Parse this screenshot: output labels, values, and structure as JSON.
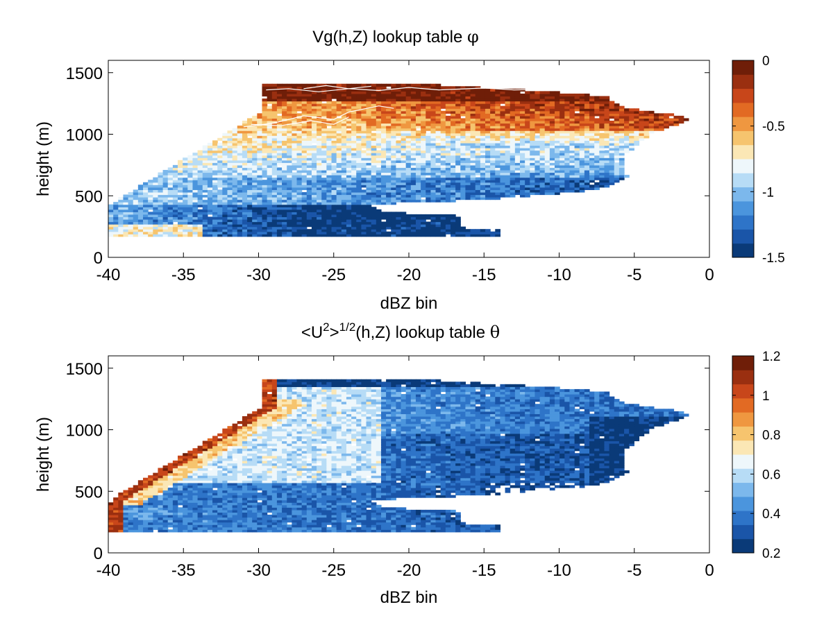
{
  "chart_data": [
    {
      "type": "heatmap",
      "title": "Vg(h,Z) lookup table",
      "title_symbol": "φ",
      "xlabel": "dBZ bin",
      "ylabel": "height (m)",
      "xlim": [
        -40,
        0
      ],
      "ylim": [
        0,
        1600
      ],
      "xticks": [
        -40,
        -35,
        -30,
        -25,
        -20,
        -15,
        -10,
        -5,
        0
      ],
      "yticks": [
        0,
        500,
        1000,
        1500
      ],
      "colorbar": {
        "range": [
          -1.5,
          0
        ],
        "ticks": [
          -1.5,
          -1,
          -0.5,
          0
        ],
        "tick_labels": [
          "-1.5",
          "-1",
          "-0.5",
          "0"
        ],
        "colormap": "blue-white-red"
      },
      "data_domain": {
        "bin_x_dbz": 0.33,
        "bin_y_m": 20,
        "x_range": [
          -40,
          -1.5
        ],
        "y_range": [
          170,
          1400
        ]
      },
      "field": {
        "upper_band_mean": -0.1,
        "mid_band_mean": -0.8,
        "low_band_mean": -1.1,
        "bottom_tongue_mean": -1.45
      },
      "contour_color": "#ffffff"
    },
    {
      "type": "heatmap",
      "title_main": "<U",
      "title_sup1": "2",
      "title_mid": ">",
      "title_sup2": "1/2",
      "title_end": "(h,Z) lookup table",
      "title_symbol": "θ",
      "xlabel": "dBZ bin",
      "ylabel": "height (m)",
      "xlim": [
        -40,
        0
      ],
      "ylim": [
        0,
        1600
      ],
      "xticks": [
        -40,
        -35,
        -30,
        -25,
        -20,
        -15,
        -10,
        -5,
        0
      ],
      "yticks": [
        0,
        500,
        1000,
        1500
      ],
      "colorbar": {
        "range": [
          0.2,
          1.2
        ],
        "ticks": [
          0.2,
          0.4,
          0.6,
          0.8,
          1,
          1.2
        ],
        "tick_labels": [
          "0.2",
          "0.4",
          "0.6",
          "0.8",
          "1",
          "1.2"
        ],
        "colormap": "blue-white-red"
      },
      "data_domain": {
        "bin_x_dbz": 0.33,
        "bin_y_m": 20,
        "x_range": [
          -40,
          -1.5
        ],
        "y_range": [
          170,
          1400
        ]
      },
      "field": {
        "edge_value": 1.05,
        "upper_left_mean": 0.62,
        "interior_mean": 0.35,
        "right_edge_mean": 0.22
      }
    }
  ],
  "colors": {
    "palette": [
      "#0a3a78",
      "#1a55a8",
      "#2e74c8",
      "#4b95dd",
      "#7cb8ec",
      "#b7dcf6",
      "#eef7fb",
      "#fbe7b5",
      "#f6c46e",
      "#ef9740",
      "#e26a23",
      "#c8461a",
      "#9a2f10",
      "#6f1e08"
    ]
  }
}
